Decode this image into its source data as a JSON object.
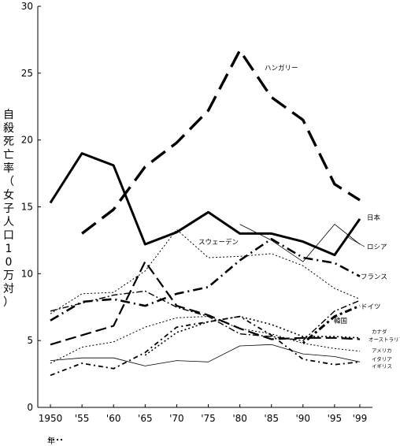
{
  "chart_data": {
    "type": "line",
    "ylabel": "自殺死亡率（女子人口10万対）",
    "ylim": [
      0,
      30
    ],
    "yticks": [
      0,
      5,
      10,
      15,
      20,
      25,
      30
    ],
    "x": [
      1950,
      1955,
      1960,
      1965,
      1970,
      1975,
      1980,
      1985,
      1990,
      1995,
      1999
    ],
    "x_tick_labels": [
      "1950",
      "'55",
      "'60",
      "'65",
      "'70",
      "'75",
      "'80",
      "'85",
      "'90",
      "'95",
      "'99"
    ],
    "x_unit": "年",
    "series": [
      {
        "name": "ハンガリー",
        "style": "longdash-thick",
        "values": [
          null,
          13.0,
          14.8,
          18.0,
          19.8,
          22.2,
          26.7,
          23.2,
          21.5,
          16.7,
          15.5
        ]
      },
      {
        "name": "日本",
        "style": "solid-thick",
        "values": [
          15.3,
          19.0,
          18.1,
          12.2,
          13.1,
          14.6,
          13.0,
          13.0,
          12.4,
          11.4,
          14.1
        ]
      },
      {
        "name": "ロシア",
        "style": "solid-thin",
        "values": [
          null,
          null,
          null,
          null,
          null,
          null,
          13.7,
          12.5,
          10.9,
          13.7,
          12.2
        ]
      },
      {
        "name": "スウェーデン",
        "style": "dotted-thin",
        "values": [
          7.0,
          8.5,
          8.6,
          10.2,
          13.3,
          11.2,
          11.3,
          11.5,
          10.6,
          8.9,
          8.1
        ]
      },
      {
        "name": "フランス",
        "style": "dashdot-thick",
        "values": [
          6.5,
          7.9,
          8.1,
          7.6,
          8.5,
          9.0,
          11.0,
          12.6,
          11.2,
          10.8,
          9.8
        ]
      },
      {
        "name": "ドイツ",
        "style": "dashdot-thin",
        "values": [
          7.2,
          7.8,
          8.4,
          8.7,
          7.5,
          6.8,
          5.5,
          5.3,
          5.0,
          7.2,
          8.0
        ]
      },
      {
        "name": "韓国",
        "style": "dotdash-thick",
        "values": [
          null,
          null,
          null,
          null,
          null,
          null,
          null,
          null,
          4.8,
          6.8,
          7.6
        ]
      },
      {
        "name": "カナダ",
        "style": "dotted-medium",
        "values": [
          null,
          null,
          null,
          3.9,
          5.6,
          6.4,
          6.8,
          6.2,
          5.3,
          5.3,
          5.2
        ]
      },
      {
        "name": "オーストラリア",
        "style": "longdash-medium",
        "values": [
          4.7,
          5.4,
          6.1,
          10.9,
          7.6,
          6.9,
          5.9,
          5.1,
          5.2,
          5.2,
          5.1
        ]
      },
      {
        "name": "アメリカ",
        "style": "dotted-thin",
        "values": [
          3.3,
          4.5,
          4.9,
          6.0,
          6.7,
          6.8,
          5.9,
          5.5,
          4.8,
          4.4,
          4.2
        ]
      },
      {
        "name": "イタリア",
        "style": "solid-thin",
        "values": [
          3.5,
          3.7,
          3.7,
          3.1,
          3.5,
          3.4,
          4.6,
          4.7,
          4.0,
          3.8,
          3.4
        ]
      },
      {
        "name": "イギリス",
        "style": "dashdot-medium",
        "values": [
          2.4,
          3.3,
          2.9,
          4.1,
          6.0,
          6.4,
          6.8,
          5.4,
          3.6,
          3.2,
          3.4
        ]
      }
    ]
  }
}
